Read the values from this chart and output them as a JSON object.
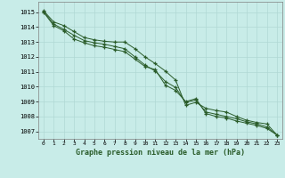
{
  "title": "Graphe pression niveau de la mer (hPa)",
  "bg_color": "#c8ece8",
  "grid_color": "#b0d8d4",
  "line_color": "#2a5c2a",
  "x_labels": [
    "0",
    "1",
    "2",
    "3",
    "4",
    "5",
    "6",
    "7",
    "8",
    "9",
    "10",
    "11",
    "12",
    "13",
    "14",
    "15",
    "16",
    "17",
    "18",
    "19",
    "20",
    "21",
    "22",
    "23"
  ],
  "ylim": [
    1006.5,
    1015.7
  ],
  "yticks": [
    1007,
    1008,
    1009,
    1010,
    1011,
    1012,
    1013,
    1014,
    1015
  ],
  "series": [
    [
      1015.1,
      1014.35,
      1014.1,
      1013.7,
      1013.3,
      1013.15,
      1013.05,
      1013.0,
      1013.0,
      1012.55,
      1012.0,
      1011.55,
      1011.05,
      1010.45,
      1008.75,
      1008.95,
      1008.55,
      1008.4,
      1008.3,
      1008.0,
      1007.75,
      1007.6,
      1007.5,
      1006.75
    ],
    [
      1015.05,
      1014.2,
      1013.85,
      1013.45,
      1013.1,
      1012.95,
      1012.85,
      1012.7,
      1012.55,
      1012.0,
      1011.45,
      1011.05,
      1010.35,
      1009.95,
      1008.95,
      1009.1,
      1008.3,
      1008.15,
      1008.0,
      1007.85,
      1007.65,
      1007.5,
      1007.3,
      1006.75
    ],
    [
      1015.0,
      1014.1,
      1013.75,
      1013.2,
      1012.95,
      1012.75,
      1012.65,
      1012.5,
      1012.35,
      1011.85,
      1011.35,
      1011.15,
      1010.1,
      1009.75,
      1009.0,
      1009.2,
      1008.2,
      1008.0,
      1007.9,
      1007.7,
      1007.55,
      1007.4,
      1007.2,
      1006.75
    ]
  ]
}
